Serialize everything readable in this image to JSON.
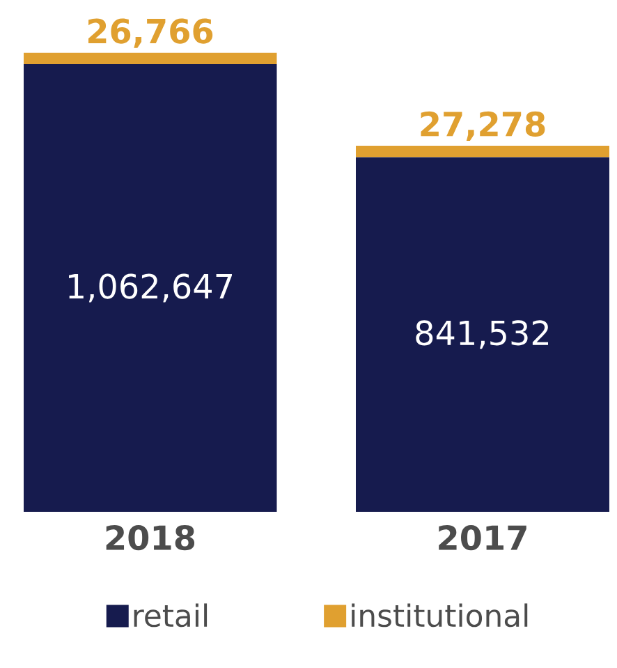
{
  "chart_data": {
    "type": "bar",
    "stacked": true,
    "categories": [
      "2018",
      "2017"
    ],
    "series": [
      {
        "name": "retail",
        "color": "#161b4e",
        "values": [
          1062647,
          841532
        ],
        "value_labels": [
          "1,062,647",
          "841,532"
        ]
      },
      {
        "name": "institutional",
        "color": "#e0a030",
        "values": [
          26766,
          27278
        ],
        "value_labels": [
          "26,766",
          "27,278"
        ]
      }
    ],
    "legend": "bottom"
  }
}
